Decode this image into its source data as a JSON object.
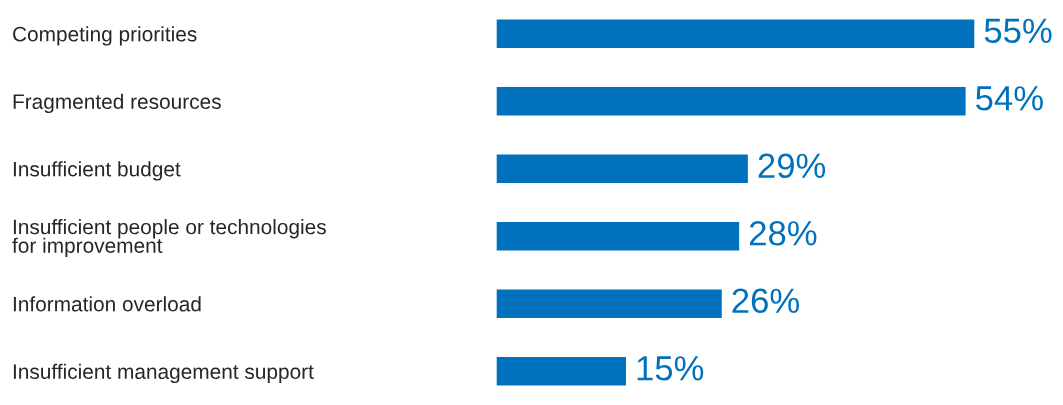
{
  "chart_data": {
    "type": "bar",
    "orientation": "horizontal",
    "categories": [
      "Competing priorities",
      "Fragmented resources",
      "Insufficient budget",
      "Insufficient people or technologies\nfor improvement",
      "Information overload",
      "Insufficient management support"
    ],
    "values": [
      55,
      54,
      29,
      28,
      26,
      15
    ],
    "value_labels": [
      "55%",
      "54%",
      "29%",
      "28%",
      "26%",
      "15%"
    ],
    "color": "#0071bc",
    "grid": false,
    "legend": false,
    "tick_labels": "y"
  }
}
